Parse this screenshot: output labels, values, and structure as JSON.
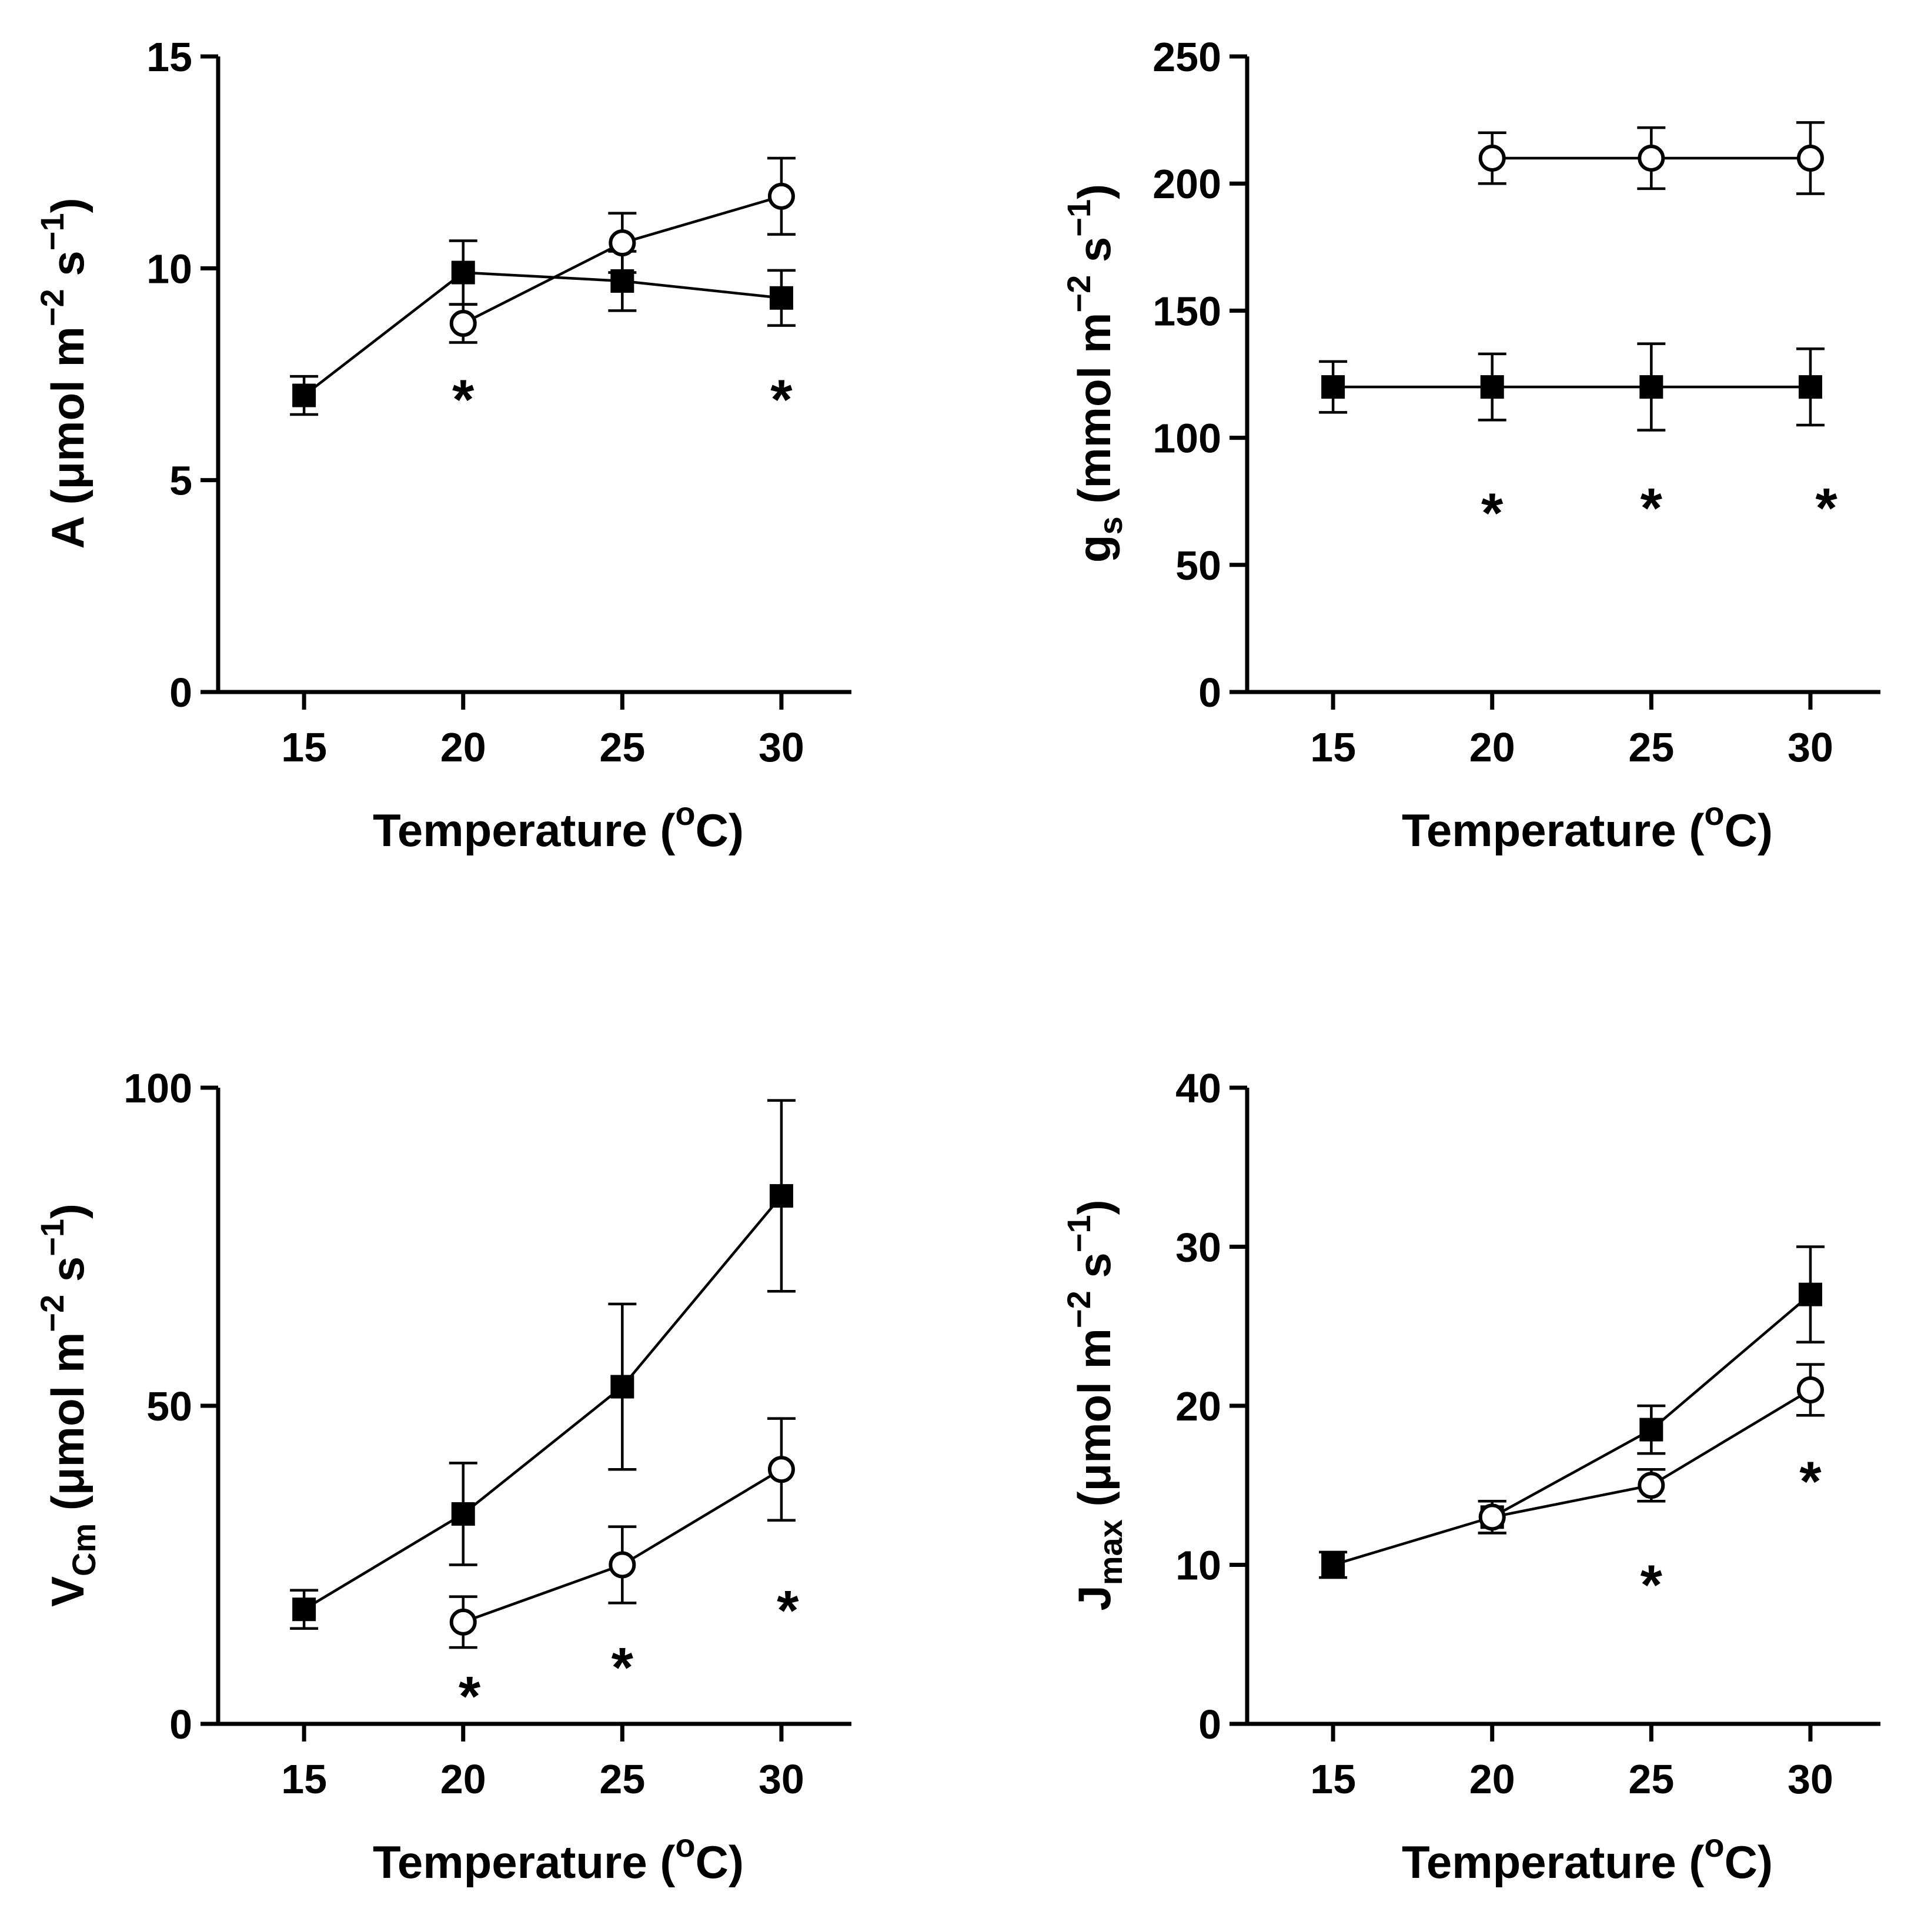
{
  "chart_data": [
    {
      "id": "A",
      "type": "line",
      "ylabel": {
        "main": "A (μmol m",
        "sup1": "−2",
        "mid": " s",
        "sup2": "−1",
        "end": ")"
      },
      "xlabel": {
        "main": "Temperature (",
        "sup": "o",
        "end": "C)"
      },
      "ylim": [
        0,
        15
      ],
      "yticks": [
        0,
        5,
        10,
        15
      ],
      "xticks": [
        15,
        20,
        25,
        30
      ],
      "series": [
        {
          "name": "filled-square",
          "marker": "square",
          "x": [
            15,
            20,
            25,
            30
          ],
          "y": [
            7.0,
            9.9,
            9.7,
            9.3
          ],
          "err": [
            0.45,
            0.75,
            0.7,
            0.65
          ]
        },
        {
          "name": "open-circle",
          "marker": "circle",
          "x": [
            20,
            25,
            30
          ],
          "y": [
            8.7,
            10.6,
            11.7
          ],
          "err": [
            0.45,
            0.7,
            0.9
          ]
        }
      ],
      "annotations": [
        {
          "x": 20,
          "y": 7.0,
          "text": "*"
        },
        {
          "x": 30,
          "y": 7.0,
          "text": "*"
        }
      ]
    },
    {
      "id": "gs",
      "type": "line",
      "ylabel": {
        "main": "g",
        "sub": "s",
        "rest": " (mmol m",
        "sup1": "−2",
        "mid": " s",
        "sup2": "−1",
        "end": ")"
      },
      "xlabel": {
        "main": "Temperature (",
        "sup": "o",
        "end": "C)"
      },
      "ylim": [
        0,
        250
      ],
      "yticks": [
        0,
        50,
        100,
        150,
        200,
        250
      ],
      "xticks": [
        15,
        20,
        25,
        30
      ],
      "series": [
        {
          "name": "filled-square",
          "marker": "square",
          "x": [
            15,
            20,
            25,
            30
          ],
          "y": [
            120,
            120,
            120,
            120
          ],
          "err": [
            10,
            13,
            17,
            15
          ]
        },
        {
          "name": "open-circle",
          "marker": "circle",
          "x": [
            20,
            25,
            30
          ],
          "y": [
            210,
            210,
            210
          ],
          "err": [
            10,
            12,
            14
          ]
        }
      ],
      "annotations": [
        {
          "x": 20,
          "y": 72,
          "text": "*"
        },
        {
          "x": 25,
          "y": 74,
          "text": "*"
        },
        {
          "x": 30.5,
          "y": 74,
          "text": "*"
        }
      ]
    },
    {
      "id": "Vcmax",
      "type": "line",
      "ylabel": {
        "main": "V",
        "sub": "Cm",
        "rest": " (μmol m",
        "sup1": "−2",
        "mid": " s",
        "sup2": "−1",
        "end": ")"
      },
      "xlabel": {
        "main": "Temperature (",
        "sup": "o",
        "end": "C)"
      },
      "ylim": [
        0,
        100
      ],
      "yticks": [
        0,
        50,
        100
      ],
      "xticks": [
        15,
        20,
        25,
        30
      ],
      "series": [
        {
          "name": "filled-square",
          "marker": "square",
          "x": [
            15,
            20,
            25,
            30
          ],
          "y": [
            18,
            33,
            53,
            83
          ],
          "err": [
            3,
            8,
            13,
            15
          ]
        },
        {
          "name": "open-circle",
          "marker": "circle",
          "x": [
            20,
            25,
            30
          ],
          "y": [
            16,
            25,
            40
          ],
          "err": [
            4,
            6,
            8
          ]
        }
      ],
      "annotations": [
        {
          "x": 20.2,
          "y": 5.0,
          "text": "*"
        },
        {
          "x": 25,
          "y": 9.5,
          "text": "*"
        },
        {
          "x": 30.2,
          "y": 18.5,
          "text": "*"
        }
      ]
    },
    {
      "id": "Jmax",
      "type": "line",
      "ylabel": {
        "main": "J",
        "sub": "max",
        "rest": " (μmol m",
        "sup1": "−2",
        "mid": " s",
        "sup2": "−1",
        "end": ")"
      },
      "xlabel": {
        "main": "Temperature (",
        "sup": "o",
        "end": "C)"
      },
      "ylim": [
        0,
        40
      ],
      "yticks": [
        0,
        10,
        20,
        30,
        40
      ],
      "xticks": [
        15,
        20,
        25,
        30
      ],
      "series": [
        {
          "name": "filled-square",
          "marker": "square",
          "x": [
            15,
            20,
            25,
            30
          ],
          "y": [
            10,
            13,
            18.5,
            27
          ],
          "err": [
            0.8,
            1.0,
            1.5,
            3.0
          ]
        },
        {
          "name": "open-circle",
          "marker": "circle",
          "x": [
            20,
            25,
            30
          ],
          "y": [
            13,
            15,
            21
          ],
          "err": [
            1.0,
            1.0,
            1.6
          ]
        }
      ],
      "annotations": [
        {
          "x": 30,
          "y": 15.5,
          "text": "*"
        },
        {
          "x": 25,
          "y": 9.0,
          "text": "*"
        }
      ]
    }
  ]
}
